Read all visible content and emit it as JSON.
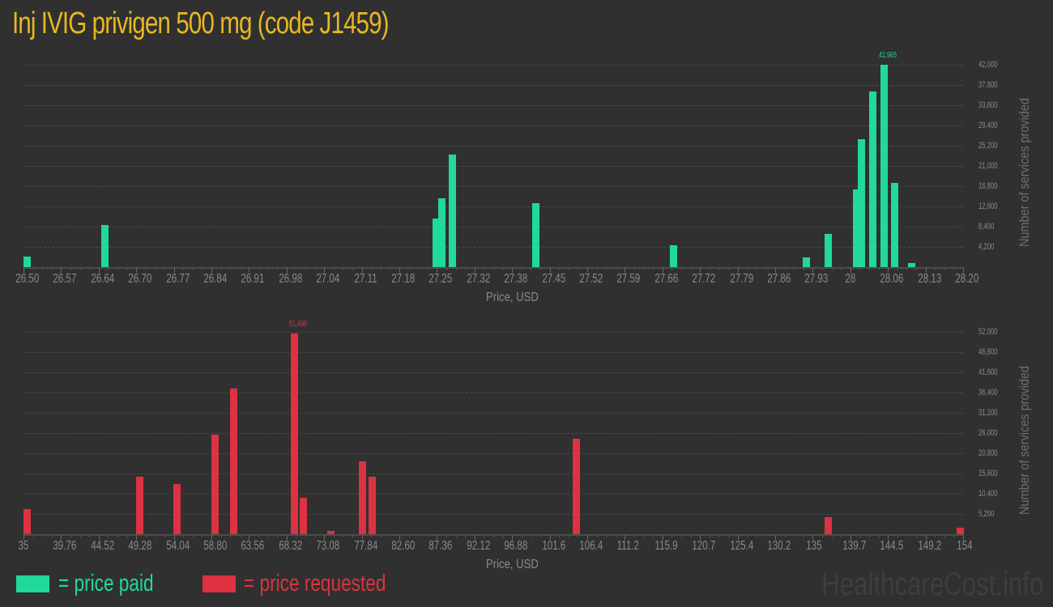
{
  "title": "Inj IVIG privigen 500 mg (code J1459)",
  "colors": {
    "title": "#e8b720",
    "paid": "#20d99b",
    "requested": "#dc3241",
    "background": "#303030"
  },
  "legend": {
    "paid_label": "= price paid",
    "requested_label": "= price requested"
  },
  "brand": "HealthcareCost.info",
  "chart_data": [
    {
      "type": "bar",
      "title": "Price paid",
      "xlabel": "Price, USD",
      "ylabel": "Number of services provided",
      "x_ticks": [
        "26.50",
        "26.57",
        "26.64",
        "26.70",
        "26.77",
        "26.84",
        "26.91",
        "26.98",
        "27.04",
        "27.11",
        "27.18",
        "27.25",
        "27.32",
        "27.38",
        "27.45",
        "27.52",
        "27.59",
        "27.66",
        "27.72",
        "27.79",
        "27.86",
        "27.93",
        "28",
        "28.06",
        "28.13",
        "28.20"
      ],
      "y_ticks": [
        "4,200",
        "8,400",
        "12,600",
        "16,800",
        "21,000",
        "25,200",
        "29,400",
        "33,600",
        "37,800",
        "42,000"
      ],
      "ylim": [
        0,
        42000
      ],
      "xlim": [
        26.5,
        28.2
      ],
      "grid": true,
      "peak_label": "41,965",
      "x": [
        26.5,
        26.64,
        27.24,
        27.25,
        27.27,
        27.42,
        27.67,
        27.91,
        27.95,
        28.0,
        28.01,
        28.03,
        28.05,
        28.07,
        28.1
      ],
      "values": [
        2200,
        8700,
        10100,
        14300,
        23300,
        13300,
        4500,
        2000,
        6900,
        16100,
        26500,
        36400,
        41965,
        17400,
        800
      ]
    },
    {
      "type": "bar",
      "title": "Price requested",
      "xlabel": "Price, USD",
      "ylabel": "Number of services provided",
      "x_ticks": [
        "35",
        "39.76",
        "44.52",
        "49.28",
        "54.04",
        "58.80",
        "63.56",
        "68.32",
        "73.08",
        "77.84",
        "82.60",
        "87.36",
        "92.12",
        "96.88",
        "101.6",
        "106.4",
        "111.2",
        "115.9",
        "120.7",
        "125.4",
        "130.2",
        "135",
        "139.7",
        "144.5",
        "149.2",
        "154"
      ],
      "y_ticks": [
        "5,200",
        "10,400",
        "15,600",
        "20,800",
        "26,000",
        "31,200",
        "36,400",
        "41,600",
        "46,800",
        "52,000"
      ],
      "ylim": [
        0,
        52000
      ],
      "xlim": [
        35,
        154
      ],
      "grid": true,
      "peak_label": "51,496",
      "x": [
        35,
        49.3,
        54.0,
        58.8,
        61.2,
        68.9,
        70.0,
        73.5,
        77.5,
        78.7,
        104.6,
        136.5,
        153.2
      ],
      "values": [
        6400,
        14700,
        12900,
        25600,
        37400,
        51496,
        9400,
        800,
        18700,
        14800,
        24500,
        4400,
        1700
      ]
    }
  ]
}
